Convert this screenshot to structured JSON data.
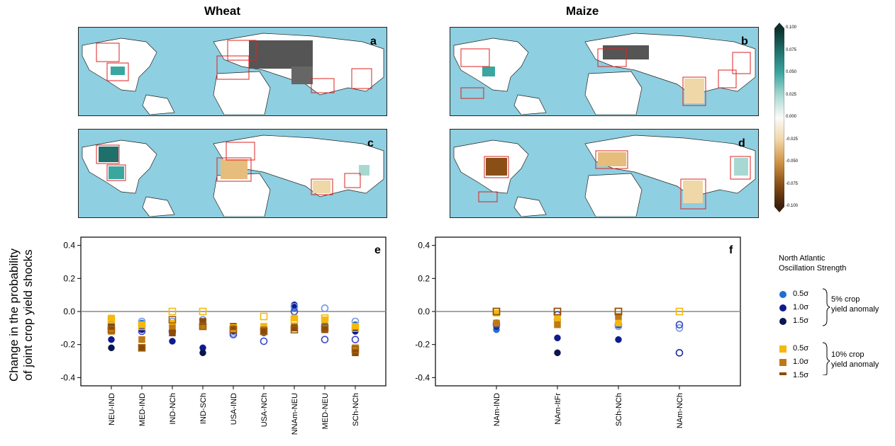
{
  "titles": {
    "wheat": "Wheat",
    "maize": "Maize"
  },
  "panels": {
    "a": "a",
    "b": "b",
    "c": "c",
    "d": "d",
    "e": "e",
    "f": "f"
  },
  "colorbar": {
    "ticks": [
      "0.100",
      "0.075",
      "0.050",
      "0.025",
      "0.000",
      "-0.025",
      "-0.050",
      "-0.075",
      "-0.100"
    ],
    "colors": [
      "#0b2e2a",
      "#1f6f6a",
      "#3aa6a0",
      "#a8d8d2",
      "#fbfbf8",
      "#f0d7a8",
      "#cf9446",
      "#8a4f16",
      "#3a1e08"
    ]
  },
  "ylabel_line1": "Change in the probability",
  "ylabel_line2": "of joint crop yield shocks",
  "legend": {
    "title_line1": "North Atlantic",
    "title_line2": "Oscillation Strength",
    "five": [
      "0.5σ",
      "1.0σ",
      "1.5σ"
    ],
    "ten": [
      "0.5σ",
      "1.0σ",
      "1.5σ"
    ],
    "five_label_line1": "5% crop",
    "five_label_line2": "yield anomaly",
    "ten_label_line1": "10% crop",
    "ten_label_line2": "yield anomaly",
    "circle_colors": [
      "#1f6fd1",
      "#0e1b8e",
      "#0b1650"
    ],
    "square_colors": [
      "#f5b90d",
      "#c07812",
      "#8a4a0a"
    ]
  },
  "chart_data": [
    {
      "type": "scatter",
      "panel": "e",
      "categories": [
        "NEU-IND",
        "MED-IND",
        "IND-NCh",
        "IND-SCh",
        "USA-IND",
        "USA-NCh",
        "NNAm-NEU",
        "MED-NEU",
        "SCh-NCh"
      ],
      "ylim": [
        -0.45,
        0.45
      ],
      "yticks": [
        "0.4",
        "0.2",
        "0.0",
        "-0.2",
        "-0.4"
      ],
      "series": [
        {
          "marker": "circle",
          "filled": true,
          "color": "#1f6fd1",
          "values": [
            -0.09,
            -0.07,
            -0.08,
            -0.08,
            -0.11,
            -0.13,
            0.02,
            -0.07,
            -0.08
          ]
        },
        {
          "marker": "circle",
          "filled": true,
          "color": "#0e1b8e",
          "values": [
            -0.17,
            -0.11,
            -0.18,
            -0.22,
            -0.12,
            -0.12,
            0.04,
            -0.11,
            -0.12
          ]
        },
        {
          "marker": "circle",
          "filled": true,
          "color": "#0b1650",
          "values": [
            -0.22,
            -0.22,
            -0.12,
            -0.25,
            -0.11,
            null,
            null,
            null,
            -0.25
          ]
        },
        {
          "marker": "circle",
          "filled": false,
          "color": "#6f95e8",
          "values": [
            -0.08,
            -0.06,
            -0.06,
            -0.05,
            -0.13,
            -0.1,
            0.03,
            0.02,
            -0.06
          ]
        },
        {
          "marker": "circle",
          "filled": false,
          "color": "#3a43c9",
          "values": [
            -0.1,
            -0.12,
            -0.12,
            -0.08,
            -0.14,
            -0.18,
            0.0,
            -0.17,
            -0.17
          ]
        },
        {
          "marker": "square",
          "filled": true,
          "color": "#f5b90d",
          "values": [
            -0.04,
            -0.08,
            -0.07,
            -0.07,
            -0.09,
            -0.09,
            -0.04,
            -0.05,
            -0.09
          ]
        },
        {
          "marker": "square",
          "filled": true,
          "color": "#c07812",
          "values": [
            -0.12,
            -0.17,
            -0.1,
            -0.09,
            -0.1,
            -0.11,
            -0.09,
            -0.1,
            -0.22
          ]
        },
        {
          "marker": "square",
          "filled": true,
          "color": "#8a4a0a",
          "values": [
            -0.09,
            -0.22,
            -0.13,
            -0.06,
            -0.09,
            -0.12,
            -0.1,
            -0.11,
            -0.25
          ]
        },
        {
          "marker": "square",
          "filled": false,
          "color": "#f5b90d",
          "values": [
            -0.05,
            -0.09,
            0.0,
            0.0,
            -0.1,
            -0.03,
            -0.05,
            -0.04,
            -0.1
          ]
        },
        {
          "marker": "square",
          "filled": false,
          "color": "#a0600f",
          "values": [
            -0.11,
            -0.22,
            -0.05,
            -0.09,
            -0.11,
            -0.12,
            -0.11,
            -0.1,
            -0.23
          ]
        }
      ]
    },
    {
      "type": "scatter",
      "panel": "f",
      "categories": [
        "NAm-IND",
        "NAm-ItFr",
        "SCh-NCh",
        "NAm-NCh"
      ],
      "ylim": [
        -0.45,
        0.45
      ],
      "yticks": [
        "0.4",
        "0.2",
        "0.0",
        "-0.2",
        "-0.4"
      ],
      "series": [
        {
          "marker": "circle",
          "filled": true,
          "color": "#1f6fd1",
          "values": [
            -0.11,
            -0.06,
            -0.08,
            null
          ]
        },
        {
          "marker": "circle",
          "filled": true,
          "color": "#0e1b8e",
          "values": [
            -0.09,
            -0.16,
            -0.17,
            null
          ]
        },
        {
          "marker": "circle",
          "filled": true,
          "color": "#0b1650",
          "values": [
            -0.08,
            -0.25,
            null,
            null
          ]
        },
        {
          "marker": "circle",
          "filled": false,
          "color": "#6f95e8",
          "values": [
            -0.07,
            -0.05,
            -0.09,
            -0.1
          ]
        },
        {
          "marker": "circle",
          "filled": false,
          "color": "#3a43c9",
          "values": [
            -0.08,
            -0.02,
            -0.08,
            -0.08
          ]
        },
        {
          "marker": "circle",
          "filled": false,
          "color": "#1b2a9c",
          "values": [
            null,
            null,
            null,
            -0.25
          ]
        },
        {
          "marker": "square",
          "filled": true,
          "color": "#f5b90d",
          "values": [
            -0.01,
            -0.04,
            -0.07,
            null
          ]
        },
        {
          "marker": "square",
          "filled": true,
          "color": "#c07812",
          "values": [
            -0.07,
            -0.08,
            -0.03,
            null
          ]
        },
        {
          "marker": "square",
          "filled": false,
          "color": "#f5b90d",
          "values": [
            0.0,
            0.0,
            0.0,
            0.0
          ]
        },
        {
          "marker": "square",
          "filled": false,
          "color": "#8a4a0a",
          "values": [
            0.0,
            0.0,
            0.0,
            null
          ]
        }
      ]
    }
  ]
}
